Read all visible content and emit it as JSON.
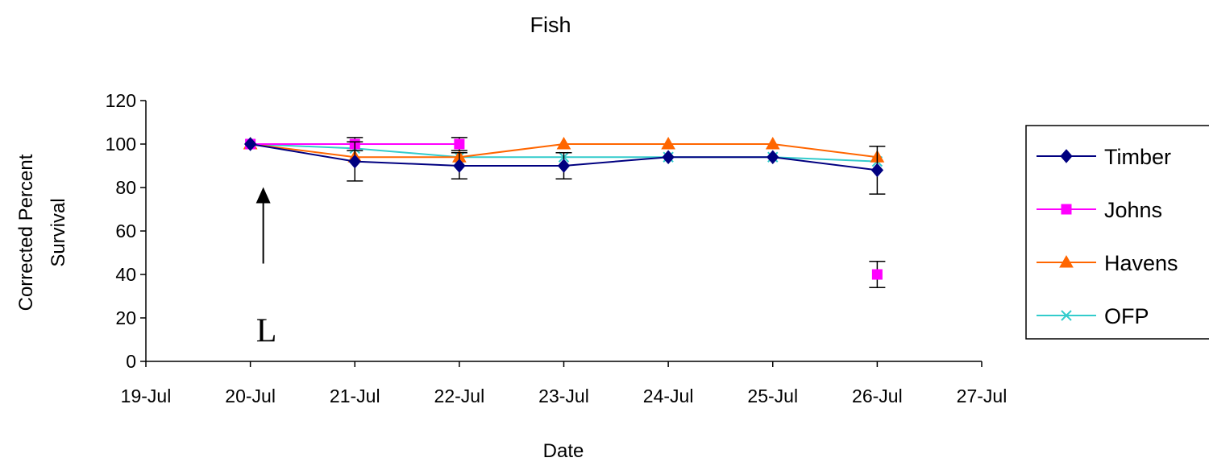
{
  "chart_data": {
    "type": "line",
    "title": "Fish",
    "xlabel": "Date",
    "ylabel": [
      "Corrected Percent",
      "Survival"
    ],
    "x_ticks": [
      "19-Jul",
      "20-Jul",
      "21-Jul",
      "22-Jul",
      "23-Jul",
      "24-Jul",
      "25-Jul",
      "26-Jul",
      "27-Jul"
    ],
    "y_ticks": [
      "0",
      "20",
      "40",
      "60",
      "80",
      "100",
      "120"
    ],
    "ylim": [
      0,
      120
    ],
    "grid": false,
    "legend_position": "right",
    "series": [
      {
        "name": "Timber",
        "color": "#000080",
        "marker": "diamond",
        "x": [
          "20-Jul",
          "21-Jul",
          "22-Jul",
          "23-Jul",
          "24-Jul",
          "25-Jul",
          "26-Jul"
        ],
        "values": [
          100,
          92,
          90,
          90,
          94,
          94,
          88
        ],
        "error": [
          0,
          9,
          6,
          6,
          0,
          0,
          11
        ]
      },
      {
        "name": "Johns",
        "color": "#FF00FF",
        "marker": "square",
        "x": [
          "20-Jul",
          "21-Jul",
          "22-Jul"
        ],
        "values": [
          100,
          100,
          100
        ],
        "error": [
          0,
          3,
          3
        ],
        "extra_points": [
          {
            "x": "26-Jul",
            "value": 40,
            "error": 6
          }
        ]
      },
      {
        "name": "Havens",
        "color": "#FF6600",
        "marker": "triangle",
        "x": [
          "20-Jul",
          "21-Jul",
          "22-Jul",
          "23-Jul",
          "24-Jul",
          "25-Jul",
          "26-Jul"
        ],
        "values": [
          100,
          94,
          94,
          100,
          100,
          100,
          94
        ],
        "error": [
          0,
          0,
          0,
          0,
          0,
          0,
          0
        ]
      },
      {
        "name": "OFP",
        "color": "#33CCCC",
        "marker": "x",
        "x": [
          "20-Jul",
          "21-Jul",
          "22-Jul",
          "23-Jul",
          "24-Jul",
          "25-Jul",
          "26-Jul"
        ],
        "values": [
          100,
          98,
          94,
          94,
          94,
          94,
          92
        ],
        "error": [
          0,
          0,
          0,
          0,
          0,
          0,
          0
        ]
      }
    ],
    "annotations": [
      {
        "text": "L",
        "type": "arrow",
        "x": "20-Jul",
        "arrow_from": 45,
        "arrow_to": 75
      }
    ]
  }
}
